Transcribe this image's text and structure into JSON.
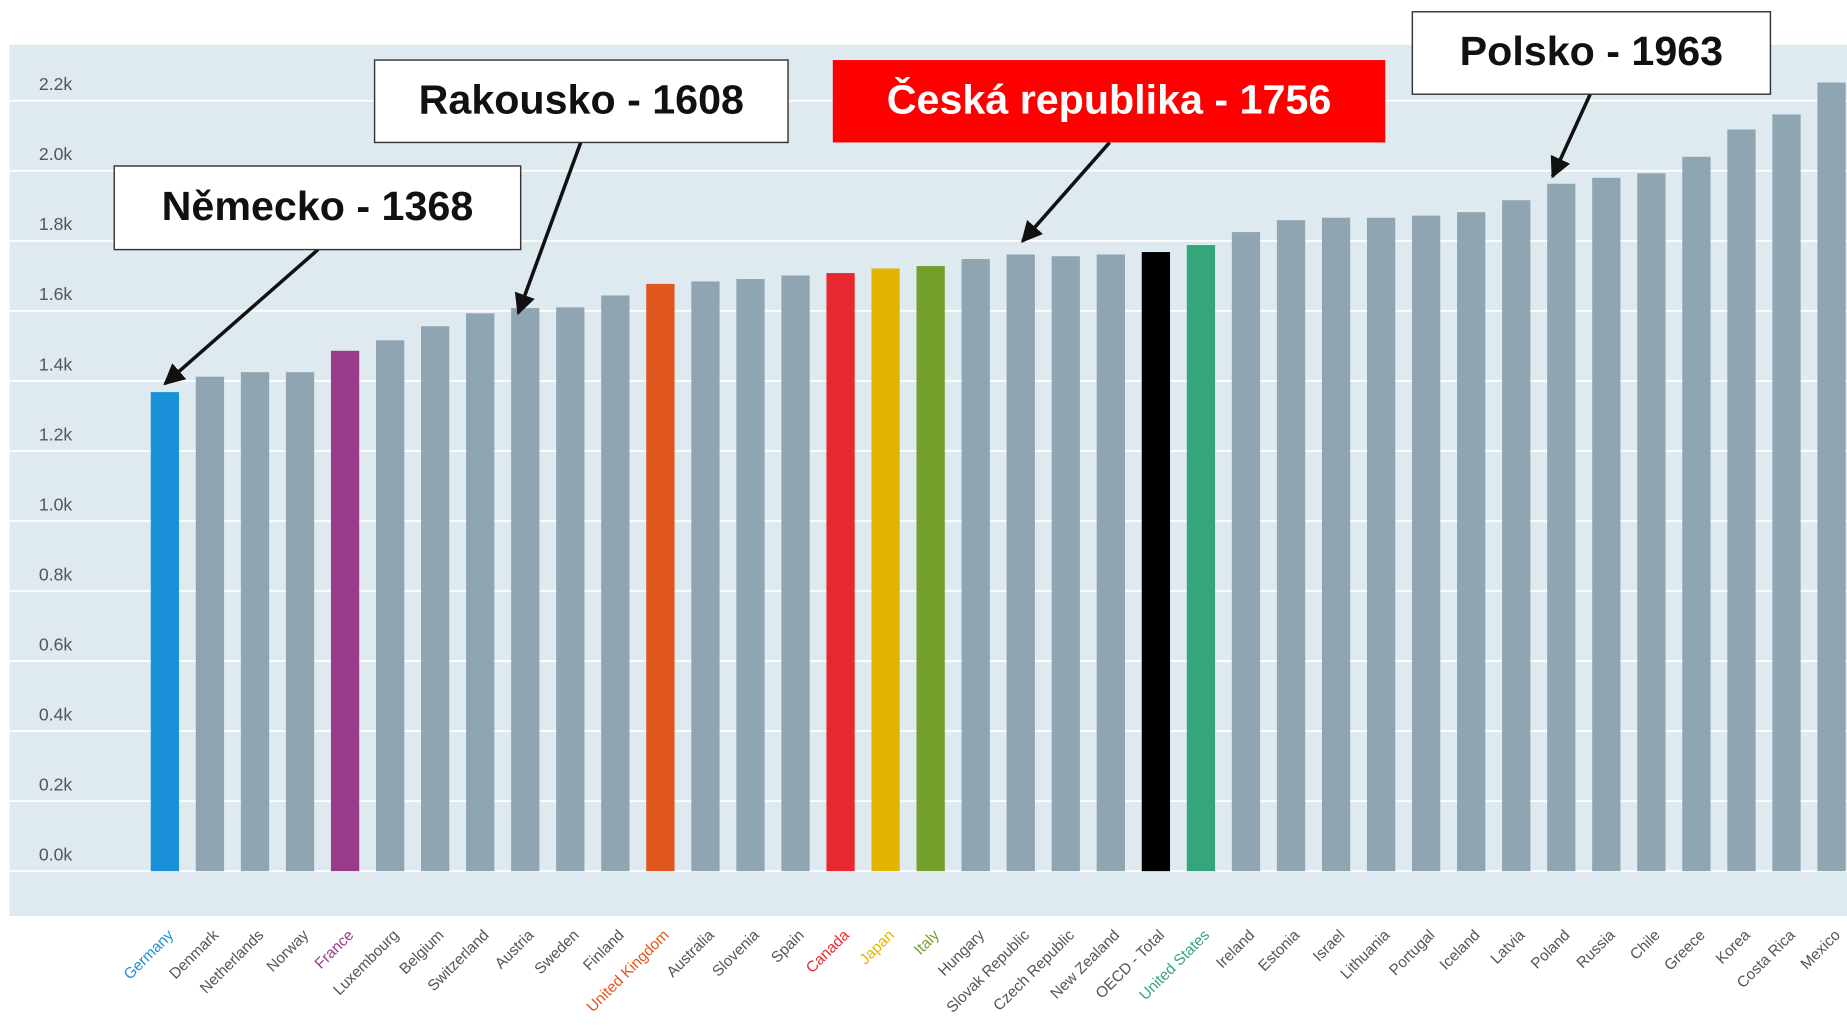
{
  "chart_data": {
    "type": "bar",
    "categories": [
      "Germany",
      "Denmark",
      "Netherlands",
      "Norway",
      "France",
      "Luxembourg",
      "Belgium",
      "Switzerland",
      "Austria",
      "Sweden",
      "Finland",
      "United Kingdom",
      "Australia",
      "Slovenia",
      "Spain",
      "Canada",
      "Japan",
      "Italy",
      "Hungary",
      "Slovak Republic",
      "Czech Republic",
      "New Zealand",
      "OECD - Total",
      "United States",
      "Ireland",
      "Estonia",
      "Israel",
      "Lithuania",
      "Portugal",
      "Iceland",
      "Latvia",
      "Poland",
      "Russia",
      "Chile",
      "Greece",
      "Korea",
      "Costa Rica",
      "Mexico"
    ],
    "values": [
      1368,
      1412,
      1425,
      1425,
      1486,
      1516,
      1556,
      1593,
      1608,
      1610,
      1644,
      1677,
      1684,
      1691,
      1701,
      1708,
      1721,
      1728,
      1748,
      1761,
      1756,
      1761,
      1768,
      1788,
      1825,
      1859,
      1866,
      1866,
      1872,
      1882,
      1916,
      1963,
      1980,
      1993,
      2040,
      2118,
      2161,
      2252
    ],
    "colors": [
      "#1a90d8",
      "#8fa5b2",
      "#8fa5b2",
      "#8fa5b2",
      "#993a8b",
      "#8fa5b2",
      "#8fa5b2",
      "#8fa5b2",
      "#8fa5b2",
      "#8fa5b2",
      "#8fa5b2",
      "#e0561f",
      "#8fa5b2",
      "#8fa5b2",
      "#8fa5b2",
      "#e8282f",
      "#e1b400",
      "#72a02a",
      "#8fa5b2",
      "#8fa5b2",
      "#8fa5b2",
      "#8fa5b2",
      "#000000",
      "#35a67c",
      "#8fa5b2",
      "#8fa5b2",
      "#8fa5b2",
      "#8fa5b2",
      "#8fa5b2",
      "#8fa5b2",
      "#8fa5b2",
      "#8fa5b2",
      "#8fa5b2",
      "#8fa5b2",
      "#8fa5b2",
      "#8fa5b2",
      "#8fa5b2",
      "#8fa5b2"
    ],
    "ylim": [
      0,
      2360
    ],
    "yticks": [
      {
        "value": 0,
        "label": "0.0k"
      },
      {
        "value": 200,
        "label": "0.2k"
      },
      {
        "value": 400,
        "label": "0.4k"
      },
      {
        "value": 600,
        "label": "0.6k"
      },
      {
        "value": 800,
        "label": "0.8k"
      },
      {
        "value": 1000,
        "label": "1.0k"
      },
      {
        "value": 1200,
        "label": "1.2k"
      },
      {
        "value": 1400,
        "label": "1.4k"
      },
      {
        "value": 1600,
        "label": "1.6k"
      },
      {
        "value": 1800,
        "label": "1.8k"
      },
      {
        "value": 2000,
        "label": "2.0k"
      },
      {
        "value": 2200,
        "label": "2.2k"
      }
    ],
    "grid": true,
    "annotations": [
      {
        "text": "Německo - 1368"
      },
      {
        "text": "Rakousko - 1608"
      },
      {
        "text": "Česká republika - 1756"
      },
      {
        "text": "Polsko - 1963"
      }
    ]
  }
}
